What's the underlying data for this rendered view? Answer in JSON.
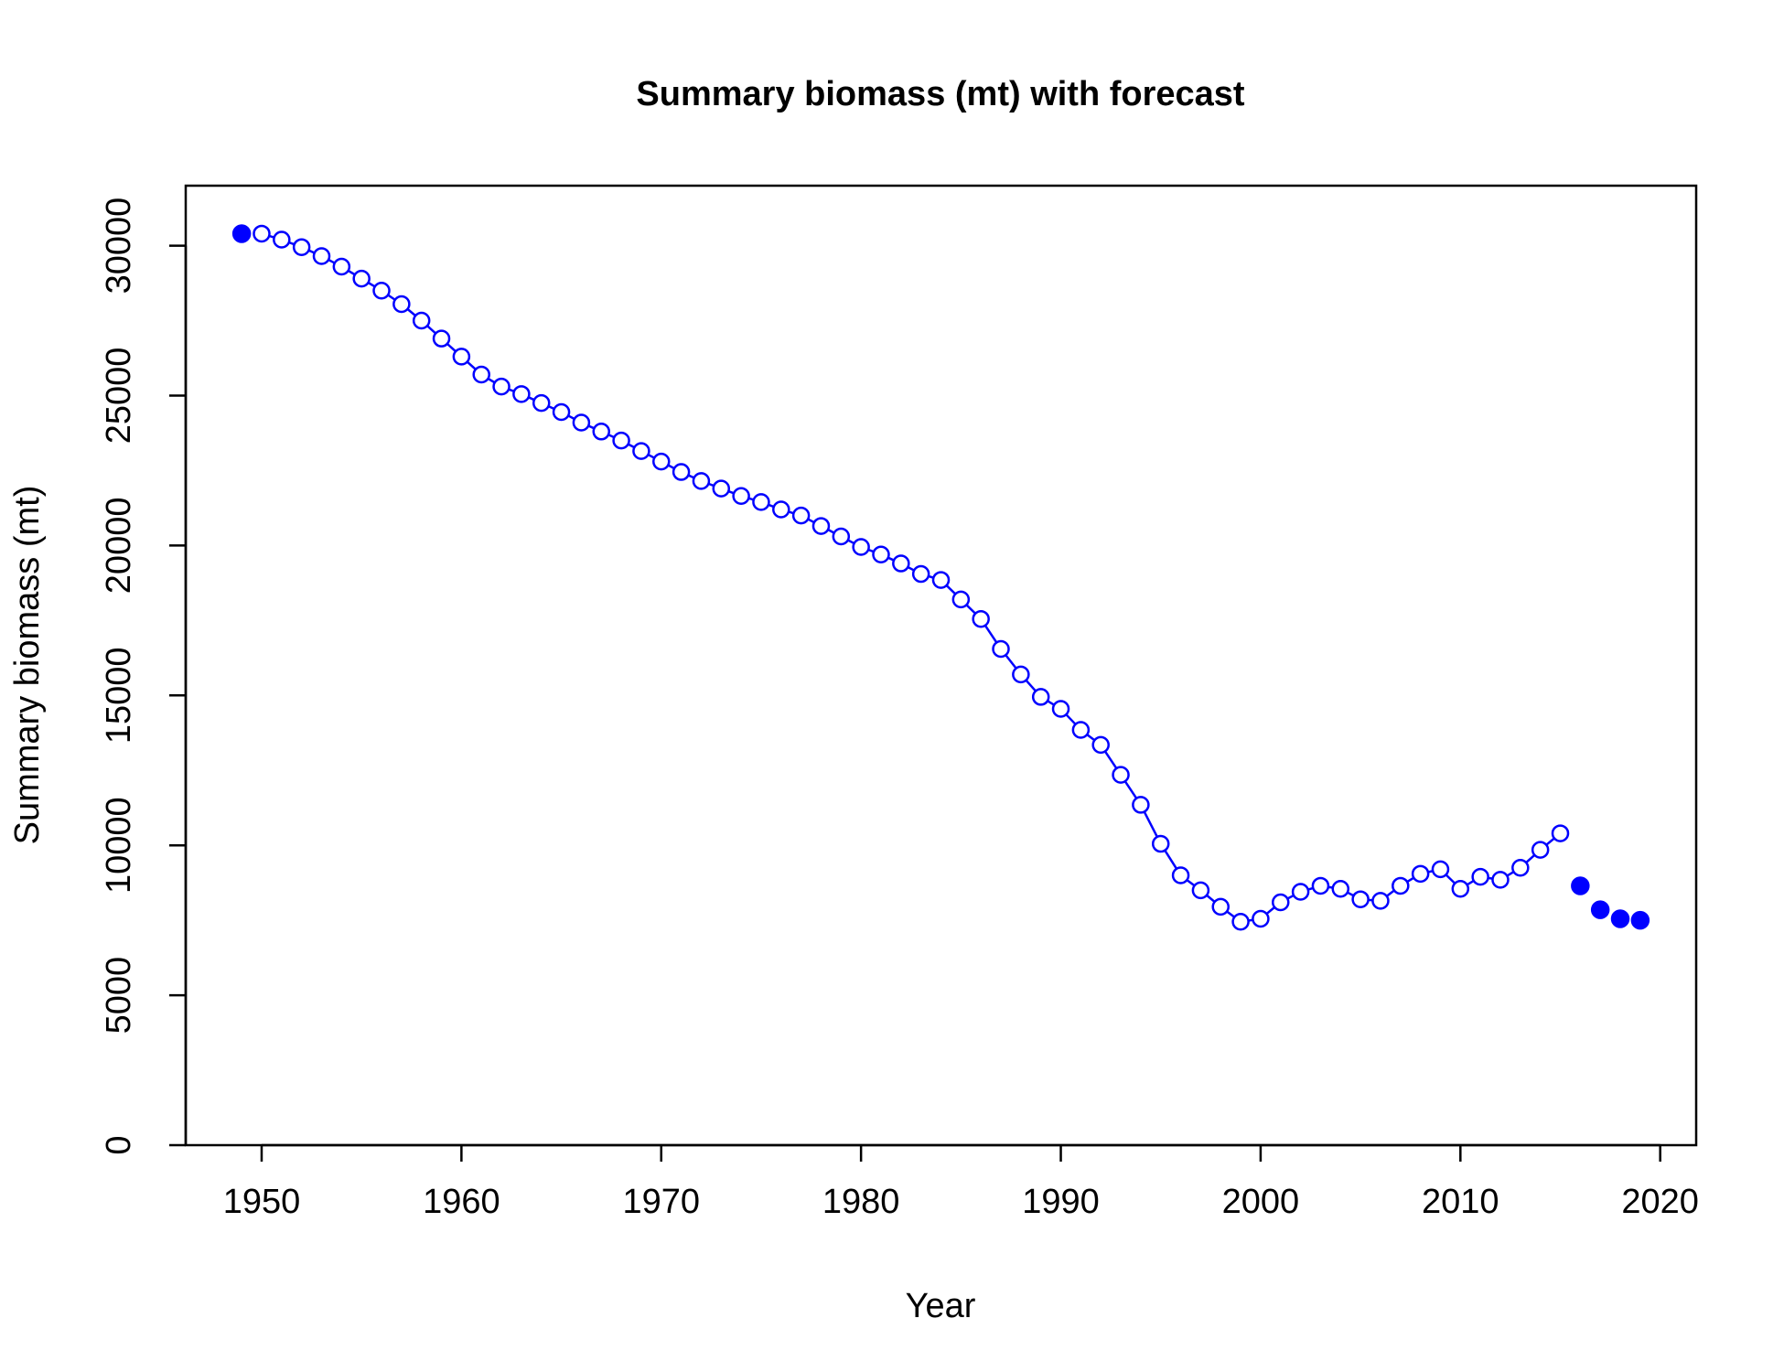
{
  "chart_data": {
    "type": "line",
    "title": "Summary biomass (mt) with forecast",
    "xlabel": "Year",
    "ylabel": "Summary biomass (mt)",
    "xlim": [
      1946.2,
      2021.8
    ],
    "ylim": [
      0,
      32000
    ],
    "xticks": [
      1950,
      1960,
      1970,
      1980,
      1990,
      2000,
      2010,
      2020
    ],
    "yticks": [
      0,
      5000,
      10000,
      15000,
      20000,
      25000,
      30000
    ],
    "xtick_labels": [
      "1950",
      "1960",
      "1970",
      "1980",
      "1990",
      "2000",
      "2010",
      "2020"
    ],
    "ytick_labels": [
      "0",
      "5000",
      "10000",
      "15000",
      "20000",
      "25000",
      "30000"
    ],
    "grid": false,
    "legend": "none",
    "color": "#0000ff",
    "series": [
      {
        "style": "open-circles-with-line",
        "x": [
          1950,
          1951,
          1952,
          1953,
          1954,
          1955,
          1956,
          1957,
          1958,
          1959,
          1960,
          1961,
          1962,
          1963,
          1964,
          1965,
          1966,
          1967,
          1968,
          1969,
          1970,
          1971,
          1972,
          1973,
          1974,
          1975,
          1976,
          1977,
          1978,
          1979,
          1980,
          1981,
          1982,
          1983,
          1984,
          1985,
          1986,
          1987,
          1988,
          1989,
          1990,
          1991,
          1992,
          1993,
          1994,
          1995,
          1996,
          1997,
          1998,
          1999,
          2000,
          2001,
          2002,
          2003,
          2004,
          2005,
          2006,
          2007,
          2008,
          2009,
          2010,
          2011,
          2012,
          2013,
          2014,
          2015
        ],
        "y": [
          30400,
          30200,
          29950,
          29650,
          29300,
          28900,
          28500,
          28050,
          27500,
          26900,
          26300,
          25700,
          25300,
          25050,
          24750,
          24450,
          24100,
          23800,
          23500,
          23150,
          22800,
          22450,
          22150,
          21900,
          21650,
          21450,
          21200,
          21000,
          20650,
          20300,
          19950,
          19700,
          19400,
          19050,
          18850,
          18200,
          17550,
          16550,
          15700,
          14950,
          14550,
          13850,
          13350,
          12350,
          11350,
          10050,
          9000,
          8500,
          7950,
          7450,
          7550,
          8100,
          8450,
          8650,
          8550,
          8200,
          8150,
          8650,
          9050,
          9200,
          8550,
          8950,
          8850,
          9250,
          9850,
          10400
        ]
      },
      {
        "style": "filled-circles",
        "x": [
          1949,
          2016,
          2017,
          2018,
          2019
        ],
        "y": [
          30400,
          8650,
          7850,
          7550,
          7500
        ]
      }
    ]
  }
}
